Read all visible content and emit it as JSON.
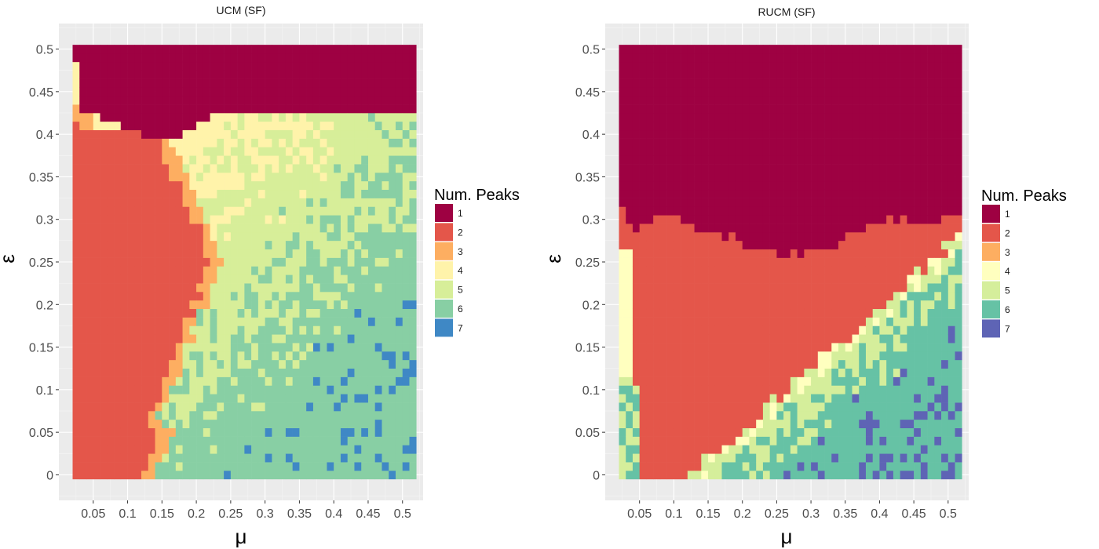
{
  "chart_data": [
    {
      "type": "heatmap",
      "title": "UCM (SF)",
      "xlabel": "μ",
      "ylabel": "ε",
      "x_ticks": [
        "0.05",
        "0.1",
        "0.15",
        "0.2",
        "0.25",
        "0.3",
        "0.35",
        "0.4",
        "0.45",
        "0.5"
      ],
      "y_ticks": [
        "0",
        "0.05",
        "0.1",
        "0.15",
        "0.2",
        "0.25",
        "0.3",
        "0.35",
        "0.4",
        "0.45",
        "0.5"
      ],
      "xlim": [
        0,
        0.53
      ],
      "ylim": [
        -0.03,
        0.53
      ],
      "grid": true,
      "legend": {
        "title": "Num. Peaks",
        "position": "right",
        "entries": [
          {
            "label": "1",
            "color": "#9E0142"
          },
          {
            "label": "2",
            "color": "#E4564A"
          },
          {
            "label": "3",
            "color": "#FDAE61"
          },
          {
            "label": "4",
            "color": "#FFF3AA"
          },
          {
            "label": "5",
            "color": "#D7EE99"
          },
          {
            "label": "6",
            "color": "#88CFA4"
          },
          {
            "label": "7",
            "color": "#3F88C5"
          }
        ]
      },
      "regions_description": "1 peak at high ε (>~0.43); 2 peaks at low μ (<~0.15-0.25); 4-7 peaks increasing with μ and decreasing with ε"
    },
    {
      "type": "heatmap",
      "title": "RUCM (SF)",
      "xlabel": "μ",
      "ylabel": "ε",
      "x_ticks": [
        "0.05",
        "0.1",
        "0.15",
        "0.2",
        "0.25",
        "0.3",
        "0.35",
        "0.4",
        "0.45",
        "0.5"
      ],
      "y_ticks": [
        "0",
        "0.05",
        "0.1",
        "0.15",
        "0.2",
        "0.25",
        "0.3",
        "0.35",
        "0.4",
        "0.45",
        "0.5"
      ],
      "xlim": [
        0,
        0.53
      ],
      "ylim": [
        -0.03,
        0.53
      ],
      "grid": true,
      "legend": {
        "title": "Num. Peaks",
        "position": "right",
        "entries": [
          {
            "label": "1",
            "color": "#9E0142"
          },
          {
            "label": "2",
            "color": "#E4564A"
          },
          {
            "label": "3",
            "color": "#FDAE61"
          },
          {
            "label": "4",
            "color": "#FFFFBF"
          },
          {
            "label": "5",
            "color": "#D5EE9B"
          },
          {
            "label": "6",
            "color": "#66C2A5"
          },
          {
            "label": "7",
            "color": "#5E64B5"
          }
        ]
      },
      "regions_description": "1 peak for ε above ~0.28-0.33; 2 peaks in central triangle; 4 peaks narrow band at low μ; 5-7 peaks lower-right region"
    }
  ]
}
